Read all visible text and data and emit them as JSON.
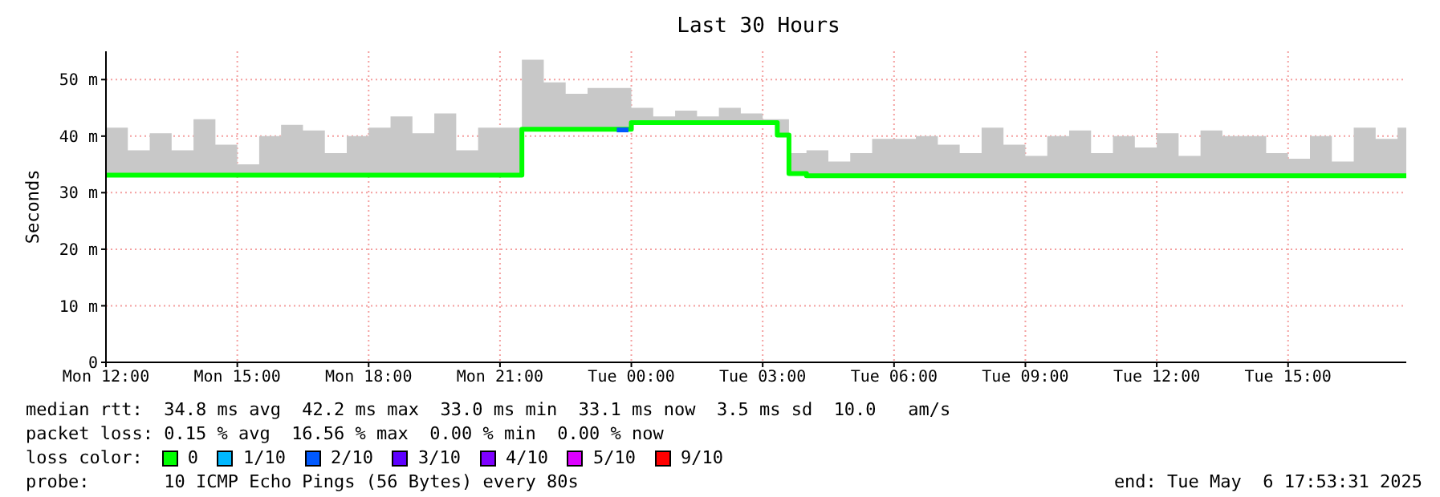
{
  "chart_data": {
    "type": "step",
    "title": "Last 30 Hours",
    "ylabel": "Seconds",
    "xlim": [
      "2025-05-05T12:00",
      "2025-05-06T17:42"
    ],
    "xticks": [
      {
        "value": "2025-05-05T12:00",
        "label": "Mon 12:00"
      },
      {
        "value": "2025-05-05T15:00",
        "label": "Mon 15:00"
      },
      {
        "value": "2025-05-05T18:00",
        "label": "Mon 18:00"
      },
      {
        "value": "2025-05-05T21:00",
        "label": "Mon 21:00"
      },
      {
        "value": "2025-05-06T00:00",
        "label": "Tue 00:00"
      },
      {
        "value": "2025-05-06T03:00",
        "label": "Tue 03:00"
      },
      {
        "value": "2025-05-06T06:00",
        "label": "Tue 06:00"
      },
      {
        "value": "2025-05-06T09:00",
        "label": "Tue 09:00"
      },
      {
        "value": "2025-05-06T12:00",
        "label": "Tue 12:00"
      },
      {
        "value": "2025-05-06T15:00",
        "label": "Tue 15:00"
      }
    ],
    "ylim": [
      0,
      55
    ],
    "yticks": [
      0,
      {
        "value": 10,
        "label": "10 m"
      },
      {
        "value": 20,
        "label": "20 m"
      },
      {
        "value": 30,
        "label": "30 m"
      },
      {
        "value": 40,
        "label": "40 m"
      },
      {
        "value": 50,
        "label": "50 m"
      }
    ],
    "grid": true,
    "legend": "bottom",
    "marker": "none",
    "series": [
      {
        "name": "0",
        "color": "#00ff00",
        "x": [
          "2025-05-05T12:00",
          "2025-05-05T12:30",
          "2025-05-05T13:00",
          "2025-05-05T13:30",
          "2025-05-05T14:00",
          "2025-05-05T14:30",
          "2025-05-05T15:00",
          "2025-05-05T15:30",
          "2025-05-05T16:00",
          "2025-05-05T16:30",
          "2025-05-05T17:00",
          "2025-05-05T17:30",
          "2025-05-05T18:00",
          "2025-05-05T18:30",
          "2025-05-05T19:00",
          "2025-05-05T19:30",
          "2025-05-05T20:00",
          "2025-05-05T20:30",
          "2025-05-05T21:00",
          "2025-05-05T21:30",
          "2025-05-05T22:00",
          "2025-05-05T22:30",
          "2025-05-05T23:00",
          "2025-05-05T23:30",
          "2025-05-06T00:00",
          "2025-05-06T00:30",
          "2025-05-06T01:00",
          "2025-05-06T01:30",
          "2025-05-06T02:00",
          "2025-05-06T02:30",
          "2025-05-06T03:00",
          "2025-05-06T03:20",
          "2025-05-06T03:36",
          "2025-05-06T04:00",
          "2025-05-06T04:30",
          "2025-05-06T05:00",
          "2025-05-06T05:30",
          "2025-05-06T06:00",
          "2025-05-06T06:30",
          "2025-05-06T07:00",
          "2025-05-06T07:30",
          "2025-05-06T08:00",
          "2025-05-06T08:30",
          "2025-05-06T09:00",
          "2025-05-06T09:30",
          "2025-05-06T10:00",
          "2025-05-06T10:30",
          "2025-05-06T11:00",
          "2025-05-06T11:30",
          "2025-05-06T12:00",
          "2025-05-06T12:30",
          "2025-05-06T13:00",
          "2025-05-06T13:30",
          "2025-05-06T14:00",
          "2025-05-06T14:30",
          "2025-05-06T15:00",
          "2025-05-06T15:30",
          "2025-05-06T16:00",
          "2025-05-06T16:30",
          "2025-05-06T17:00",
          "2025-05-06T17:30",
          "2025-05-06T17:42"
        ],
        "values": [
          33.1,
          33.1,
          33.1,
          33.1,
          33.1,
          33.1,
          33.1,
          33.1,
          33.1,
          33.1,
          33.1,
          33.1,
          33.1,
          33.1,
          33.1,
          33.1,
          33.1,
          33.1,
          33.1,
          41.2,
          41.2,
          41.2,
          41.2,
          41.2,
          42.4,
          42.4,
          42.4,
          42.4,
          42.4,
          42.4,
          42.4,
          40.2,
          33.4,
          33,
          33,
          33,
          33,
          33,
          33,
          33,
          33,
          33,
          33,
          33,
          33,
          33,
          33,
          33,
          33,
          33,
          33,
          33,
          33,
          33,
          33,
          33,
          33,
          33,
          33,
          33,
          33,
          33
        ],
        "lower": [
          32.8,
          32.8,
          32.8,
          32.8,
          32.8,
          32.8,
          32.8,
          32.8,
          32.8,
          32.8,
          32.8,
          32.8,
          32.8,
          32.8,
          32.8,
          32.8,
          32.8,
          32.8,
          32.8,
          41,
          41,
          41,
          41,
          41,
          42,
          42,
          42,
          42,
          42,
          42,
          42,
          40,
          33,
          32.6,
          32.6,
          32.6,
          32.6,
          32.6,
          32.6,
          32.6,
          32.6,
          32.6,
          32.6,
          32.6,
          32.6,
          32.6,
          32.6,
          32.6,
          32.6,
          32.6,
          32.6,
          32.6,
          32.6,
          32.6,
          32.6,
          32.6,
          32.6,
          32.6,
          32.6,
          32.6,
          32.6,
          32.6
        ],
        "upper": [
          41.5,
          37.5,
          40.5,
          37.5,
          43,
          38.5,
          35,
          40,
          42,
          41,
          37,
          40,
          41.5,
          43.5,
          40.5,
          44,
          37.5,
          41.5,
          41.5,
          53.5,
          49.5,
          47.5,
          48.5,
          48.5,
          45,
          43.5,
          44.5,
          43.5,
          45,
          44,
          43,
          43,
          37,
          37.5,
          35.5,
          37,
          39.5,
          39.5,
          40,
          38.5,
          37,
          41.5,
          38.5,
          36.5,
          40,
          41,
          37,
          40,
          38,
          40.5,
          36.5,
          41,
          40,
          40,
          37,
          36,
          40,
          35.5,
          41.5,
          39.5,
          41.5,
          41.5
        ]
      },
      {
        "name": "1/10",
        "color": "#00b8ff"
      },
      {
        "name": "2/10",
        "color": "#0059ff",
        "x": [
          "2025-05-05T23:40",
          "2025-05-05T23:56"
        ],
        "values": [
          41.1,
          41.1
        ]
      },
      {
        "name": "3/10",
        "color": "#5e00ff"
      },
      {
        "name": "4/10",
        "color": "#7e00ff"
      },
      {
        "name": "5/10",
        "color": "#dd00ff"
      },
      {
        "name": "9/10",
        "color": "#ff0000"
      }
    ],
    "annotations": [
      "median rtt:  34.8 ms avg  42.2 ms max  33.0 ms min  33.1 ms now  3.5 ms sd  10.0   am/s",
      "packet loss: 0.15 % avg  16.56 % max  0.00 % min  0.00 % now",
      "loss color:",
      "probe:       10 ICMP Echo Pings (56 Bytes) every 80s",
      "end: Tue May  6 17:53:31 2025"
    ]
  }
}
